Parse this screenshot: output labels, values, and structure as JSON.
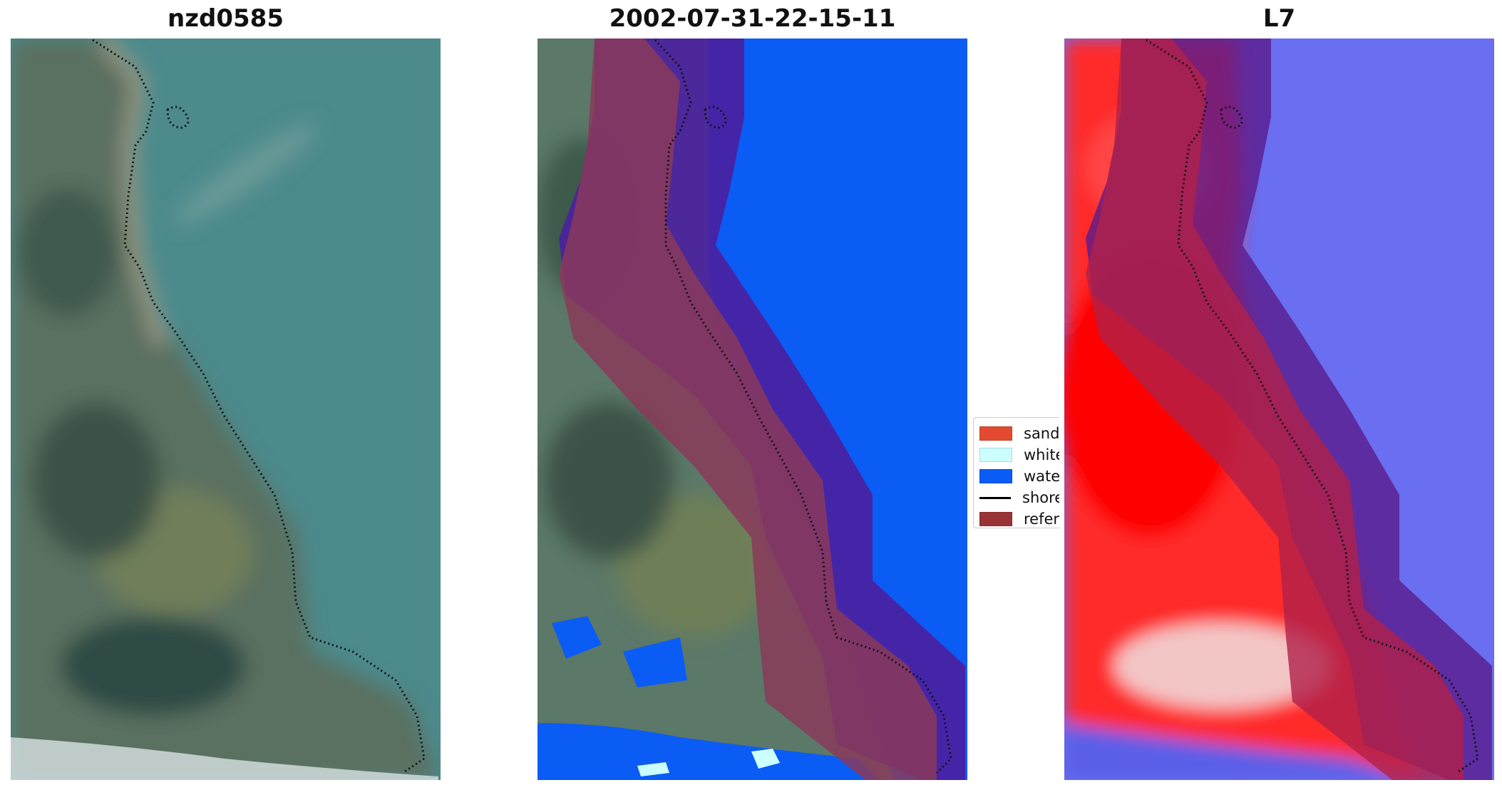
{
  "panels": [
    {
      "title": "nzd0585"
    },
    {
      "title": "2002-07-31-22-15-11"
    },
    {
      "title": "L7"
    }
  ],
  "legend": {
    "items": [
      {
        "label": "sand",
        "color": "#e34a2f"
      },
      {
        "label": "whitewater",
        "color": "#ccffff"
      },
      {
        "label": "water",
        "color": "#0a5cf5"
      },
      {
        "label": "shoreline",
        "color": "#000000"
      },
      {
        "label": "reference shoreline buffer",
        "color": "#9a3336"
      }
    ]
  }
}
